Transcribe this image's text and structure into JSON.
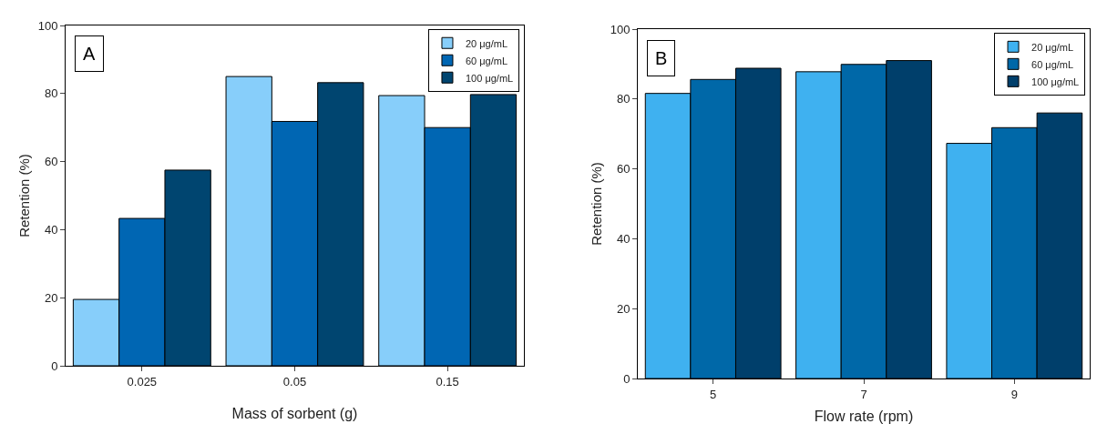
{
  "chart_data": [
    {
      "type": "bar",
      "xlabel": "Mass of sorbent (g)",
      "ylabel": "Retention (%)",
      "annotations": [
        "A"
      ],
      "categories": [
        "0.025",
        "0.05",
        "0.15"
      ],
      "series": [
        {
          "name": "20 μg/mL",
          "color": "#87cefa",
          "values": [
            19.5,
            85,
            79.4
          ]
        },
        {
          "name": "60 μg/mL",
          "color": "#0066b3",
          "values": [
            43.3,
            71.8,
            70
          ]
        },
        {
          "name": "100 μg/mL",
          "color": "#004570",
          "values": [
            57.5,
            83.2,
            79.7
          ]
        }
      ],
      "ylim": [
        0,
        100
      ],
      "yticks": [
        0,
        20,
        40,
        60,
        80,
        100
      ],
      "grid": false,
      "legend": "top right"
    },
    {
      "type": "bar",
      "xlabel": "Flow rate (rpm)",
      "ylabel": "Retention (%)",
      "annotations": [
        "B"
      ],
      "categories": [
        "5",
        "7",
        "9"
      ],
      "series": [
        {
          "name": "20 μg/mL",
          "color": "#3fb1f0",
          "values": [
            81.6,
            87.8,
            67.3
          ]
        },
        {
          "name": "60 μg/mL",
          "color": "#0068a8",
          "values": [
            85.6,
            89.9,
            71.8
          ]
        },
        {
          "name": "100 μg/mL",
          "color": "#003f6b",
          "values": [
            88.8,
            91,
            76
          ]
        }
      ],
      "ylim": [
        0,
        100
      ],
      "yticks": [
        0,
        20,
        40,
        60,
        80,
        100
      ],
      "grid": false,
      "legend": "top right"
    }
  ]
}
